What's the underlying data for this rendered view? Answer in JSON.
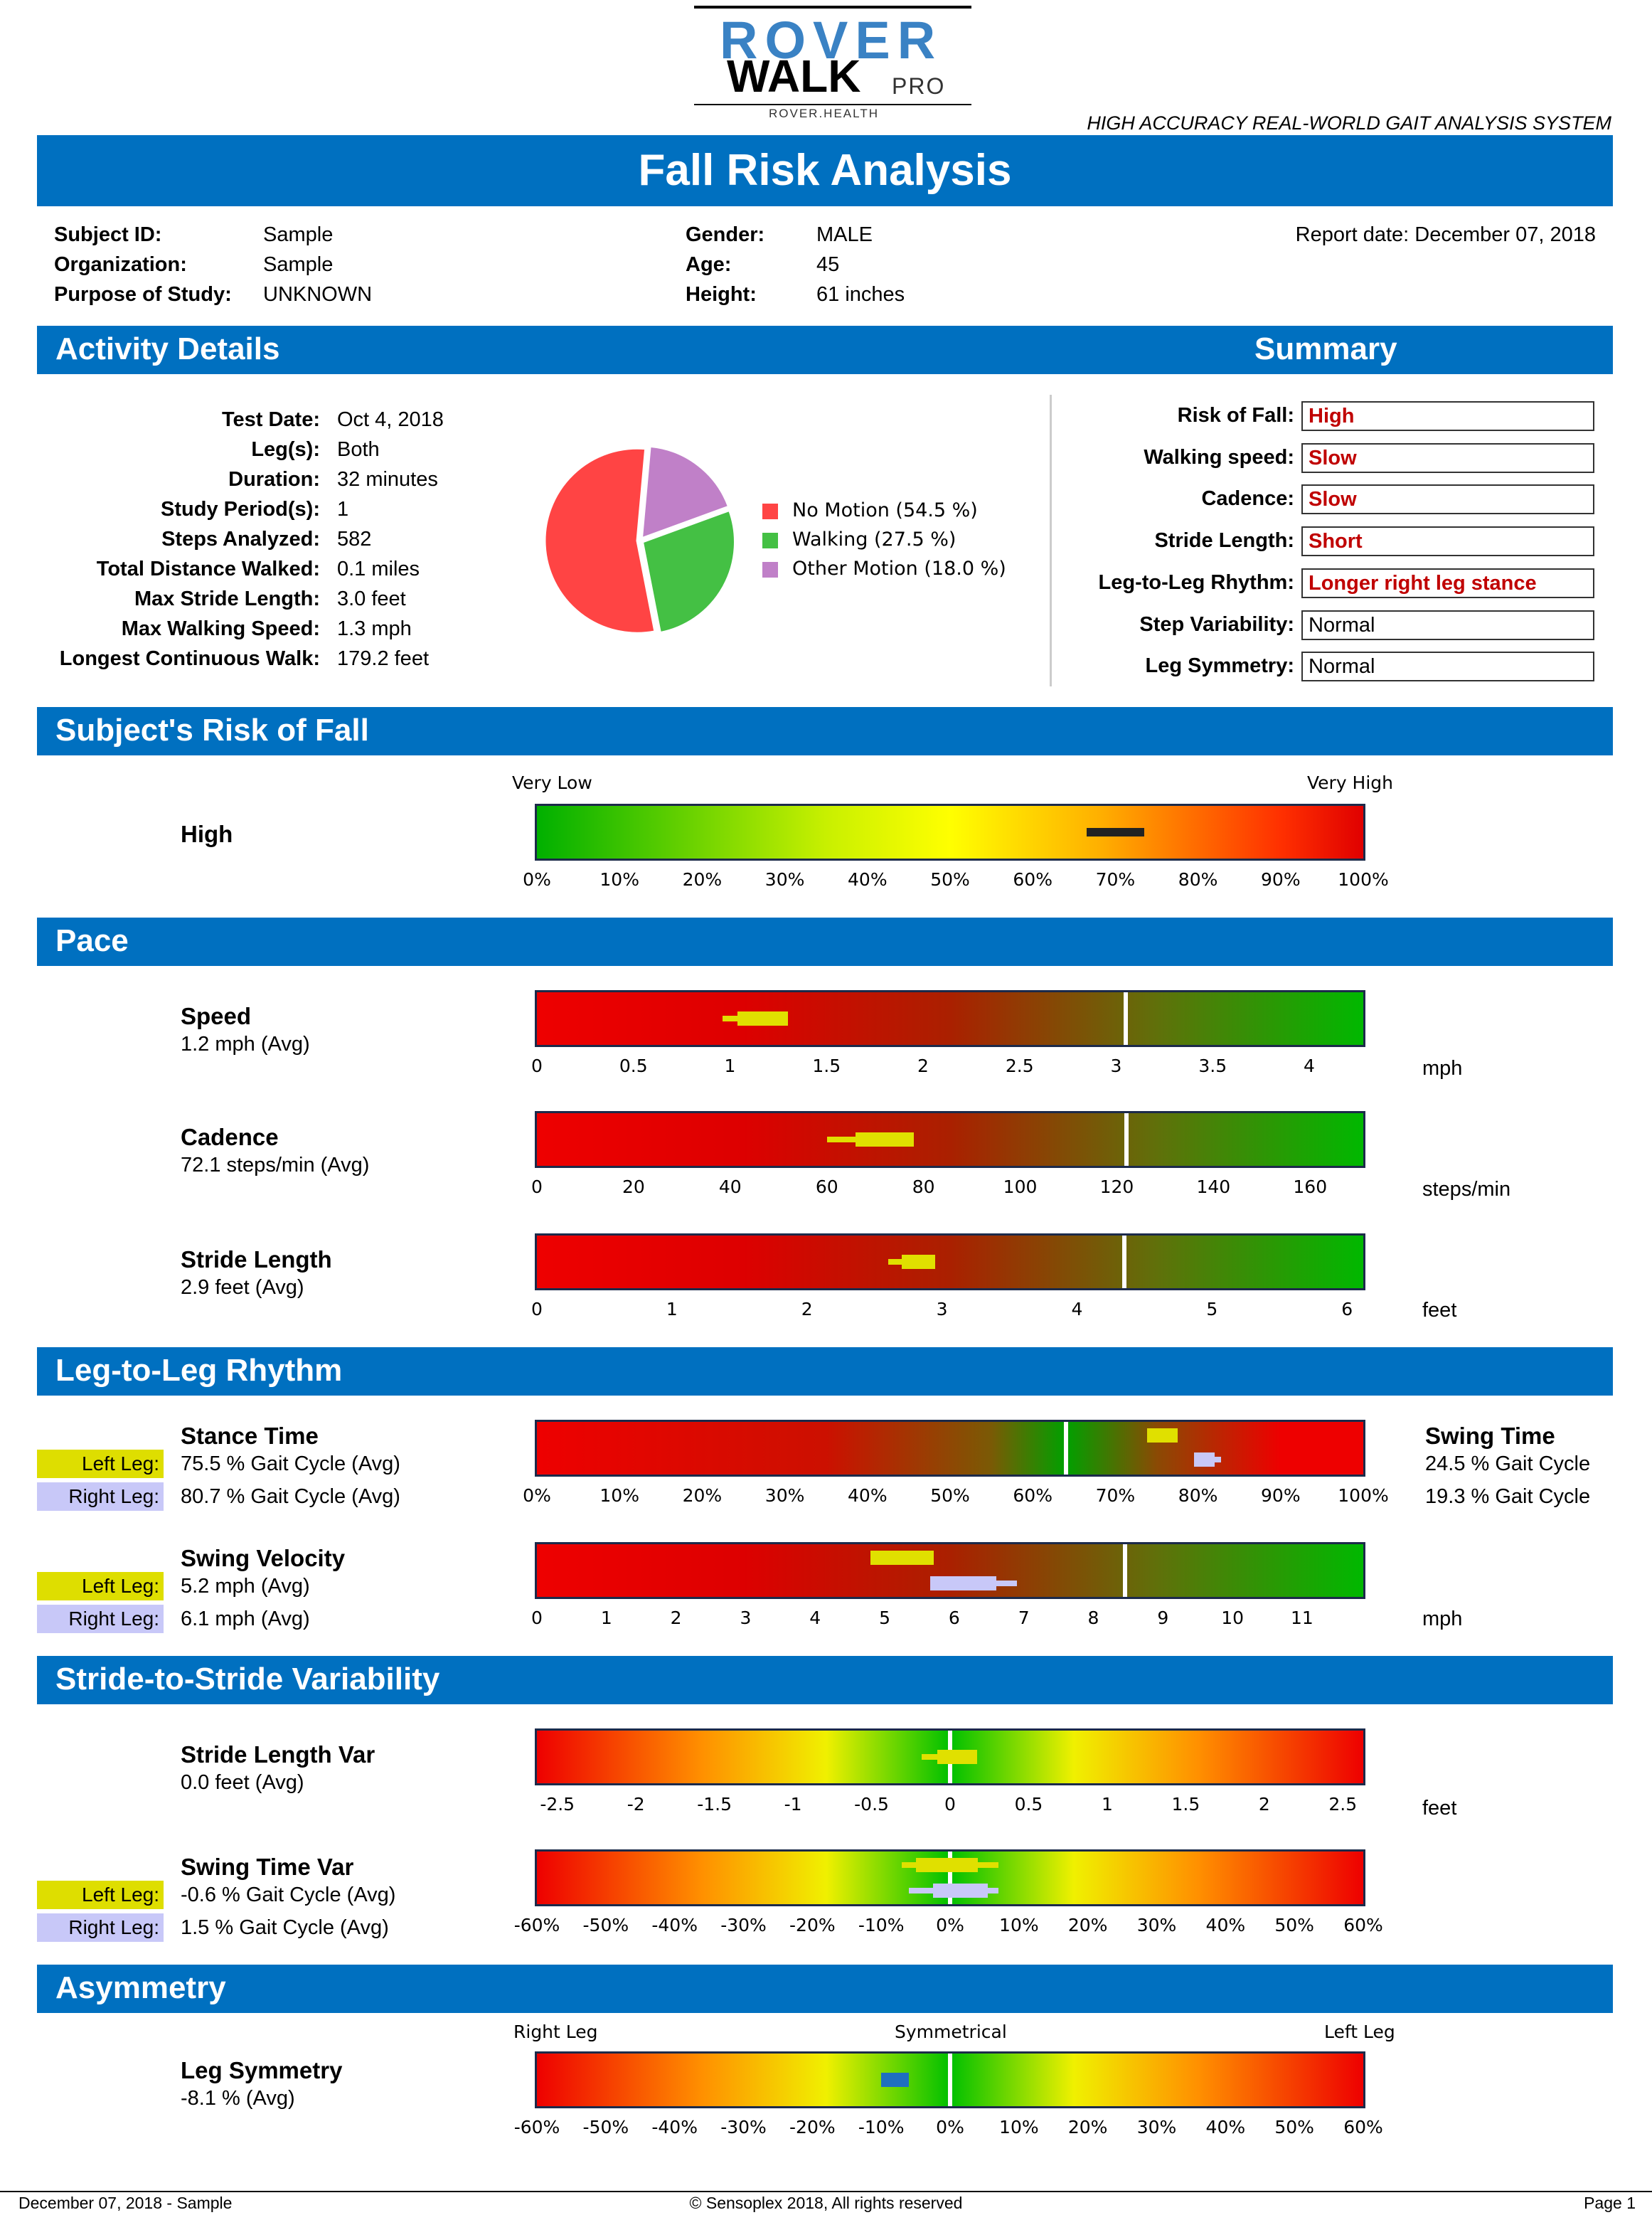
{
  "logo": {
    "rover": "ROVER",
    "walk": "WALK",
    "pro": "PRO",
    "health": "ROVER.HEALTH"
  },
  "tagline": "HIGH ACCURACY REAL-WORLD GAIT ANALYSIS SYSTEM",
  "page_title": "Fall Risk Analysis",
  "subject": {
    "subject_id_label": "Subject ID:",
    "subject_id": "Sample",
    "organization_label": "Organization:",
    "organization": "Sample",
    "purpose_label": "Purpose of Study:",
    "purpose": "UNKNOWN",
    "gender_label": "Gender:",
    "gender": "MALE",
    "age_label": "Age:",
    "age": "45",
    "height_label": "Height:",
    "height": "61 inches",
    "report_date": "Report date: December 07, 2018"
  },
  "sections": {
    "activity": "Activity Details",
    "summary": "Summary",
    "risk": "Subject's Risk of Fall",
    "pace": "Pace",
    "rhythm": "Leg-to-Leg Rhythm",
    "variability": "Stride-to-Stride Variability",
    "asymmetry": "Asymmetry"
  },
  "activity": [
    {
      "label": "Test Date:",
      "value": "Oct 4, 2018"
    },
    {
      "label": "Leg(s):",
      "value": "Both"
    },
    {
      "label": "Duration:",
      "value": "32 minutes"
    },
    {
      "label": "Study Period(s):",
      "value": "1"
    },
    {
      "label": "Steps Analyzed:",
      "value": "582"
    },
    {
      "label": "Total Distance Walked:",
      "value": "0.1 miles"
    },
    {
      "label": "Max Stride Length:",
      "value": "3.0 feet"
    },
    {
      "label": "Max Walking Speed:",
      "value": "1.3 mph"
    },
    {
      "label": "Longest Continuous Walk:",
      "value": "179.2 feet"
    }
  ],
  "pie_chart": {
    "type": "pie",
    "slices": [
      {
        "label": "No Motion (54.5 %)",
        "value": 54.5,
        "color": "#ff4444"
      },
      {
        "label": "Walking (27.5 %)",
        "value": 27.5,
        "color": "#44c044"
      },
      {
        "label": "Other Motion (18.0 %)",
        "value": 18.0,
        "color": "#c080c8"
      }
    ]
  },
  "summary": [
    {
      "label": "Risk of Fall:",
      "value": "High",
      "highlight": true
    },
    {
      "label": "Walking speed:",
      "value": "Slow",
      "highlight": true
    },
    {
      "label": "Cadence:",
      "value": "Slow",
      "highlight": true
    },
    {
      "label": "Stride Length:",
      "value": "Short",
      "highlight": true
    },
    {
      "label": "Leg-to-Leg Rhythm:",
      "value": "Longer right leg stance",
      "highlight": true
    },
    {
      "label": "Step Variability:",
      "value": "Normal",
      "highlight": false
    },
    {
      "label": "Leg Symmetry:",
      "value": "Normal",
      "highlight": false
    }
  ],
  "risk": {
    "level": "High",
    "low_label": "Very Low",
    "high_label": "Very High",
    "marker": [
      0.665,
      0.735
    ]
  },
  "legs": {
    "left": "Left Leg:",
    "right": "Right Leg:"
  },
  "metrics": {
    "speed": {
      "title": "Speed",
      "value": "1.2 mph (Avg)",
      "unit": "mph"
    },
    "cadence": {
      "title": "Cadence",
      "value": "72.1 steps/min (Avg)",
      "unit": "steps/min"
    },
    "stride": {
      "title": "Stride Length",
      "value": "2.9 feet (Avg)",
      "unit": "feet"
    },
    "stance": {
      "title": "Stance Time",
      "left": "75.5 % Gait Cycle (Avg)",
      "right": "80.7 % Gait Cycle (Avg)"
    },
    "swing": {
      "title": "Swing Time",
      "left": "24.5 % Gait Cycle",
      "right": "19.3 % Gait Cycle"
    },
    "swingvel": {
      "title": "Swing Velocity",
      "left": "5.2 mph (Avg)",
      "right": "6.1 mph (Avg)",
      "unit": "mph"
    },
    "stridevar": {
      "title": "Stride Length Var",
      "value": "0.0 feet (Avg)",
      "unit": "feet"
    },
    "swingvar": {
      "title": "Swing Time Var",
      "left": "-0.6 % Gait Cycle (Avg)",
      "right": "1.5 % Gait Cycle (Avg)"
    },
    "symmetry": {
      "title": "Leg Symmetry",
      "value": "-8.1 % (Avg)",
      "left_label": "Right Leg",
      "mid_label": "Symmetrical",
      "right_label": "Left Leg"
    }
  },
  "chart_data": [
    {
      "type": "range",
      "name": "risk",
      "range": [
        0,
        100
      ],
      "ticks": [
        "0%",
        "10%",
        "20%",
        "30%",
        "40%",
        "50%",
        "60%",
        "70%",
        "80%",
        "90%",
        "100%"
      ],
      "marker": [
        66.5,
        73.5
      ]
    },
    {
      "type": "range",
      "name": "speed",
      "range": [
        0,
        4.28
      ],
      "ticks": [
        "0",
        "0.5",
        "1",
        "1.5",
        "2",
        "2.5",
        "3",
        "3.5",
        "4"
      ],
      "tick_values": [
        0,
        0.5,
        1,
        1.5,
        2,
        2.5,
        3,
        3.5,
        4
      ],
      "threshold": 3.05,
      "left_whisker": [
        0.96,
        1.04
      ],
      "left_box": [
        1.04,
        1.3
      ]
    },
    {
      "type": "range",
      "name": "cadence",
      "range": [
        0,
        171
      ],
      "ticks": [
        "0",
        "20",
        "40",
        "60",
        "80",
        "100",
        "120",
        "140",
        "160"
      ],
      "tick_values": [
        0,
        20,
        40,
        60,
        80,
        100,
        120,
        140,
        160
      ],
      "threshold": 122,
      "left_whisker": [
        60,
        66
      ],
      "left_box": [
        66,
        78
      ]
    },
    {
      "type": "range",
      "name": "stride",
      "range": [
        0,
        6.12
      ],
      "ticks": [
        "0",
        "1",
        "2",
        "3",
        "4",
        "5",
        "6"
      ],
      "tick_values": [
        0,
        1,
        2,
        3,
        4,
        5,
        6
      ],
      "threshold": 4.35,
      "left_whisker": [
        2.6,
        2.7
      ],
      "left_box": [
        2.7,
        2.95
      ]
    },
    {
      "type": "range",
      "name": "stance",
      "range": [
        0,
        100
      ],
      "ticks": [
        "0%",
        "10%",
        "20%",
        "30%",
        "40%",
        "50%",
        "60%",
        "70%",
        "80%",
        "90%",
        "100%"
      ],
      "tick_values": [
        0,
        10,
        20,
        30,
        40,
        50,
        60,
        70,
        80,
        90,
        100
      ],
      "threshold": 64,
      "left_box": [
        73.8,
        77.5
      ],
      "right_box": [
        79.5,
        82
      ],
      "right_whisker": [
        82,
        82.8
      ]
    },
    {
      "type": "range",
      "name": "swingvel",
      "range": [
        0,
        11.88
      ],
      "ticks": [
        "0",
        "1",
        "2",
        "3",
        "4",
        "5",
        "6",
        "7",
        "8",
        "9",
        "10",
        "11"
      ],
      "tick_values": [
        0,
        1,
        2,
        3,
        4,
        5,
        6,
        7,
        8,
        9,
        10,
        11
      ],
      "threshold": 8.45,
      "left_box": [
        4.8,
        5.7
      ],
      "right_box": [
        5.65,
        6.6
      ],
      "right_whisker": [
        6.6,
        6.9
      ]
    },
    {
      "type": "range",
      "name": "stridevar",
      "range": [
        -2.63,
        2.63
      ],
      "ticks": [
        "-2.5",
        "-2",
        "-1.5",
        "-1",
        "-0.5",
        "0",
        "0.5",
        "1",
        "1.5",
        "2",
        "2.5"
      ],
      "tick_values": [
        -2.5,
        -2,
        -1.5,
        -1,
        -0.5,
        0,
        0.5,
        1,
        1.5,
        2,
        2.5
      ],
      "threshold": 0,
      "left_whisker": [
        -0.18,
        -0.08
      ],
      "left_box": [
        -0.08,
        0.17
      ]
    },
    {
      "type": "range",
      "name": "swingvar",
      "range": [
        -60,
        60
      ],
      "ticks": [
        "-60%",
        "-50%",
        "-40%",
        "-30%",
        "-20%",
        "-10%",
        "0%",
        "10%",
        "20%",
        "30%",
        "40%",
        "50%",
        "60%"
      ],
      "tick_values": [
        -60,
        -50,
        -40,
        -30,
        -20,
        -10,
        0,
        10,
        20,
        30,
        40,
        50,
        60
      ],
      "threshold": 0,
      "left_whisker": [
        -7,
        -5
      ],
      "left_box": [
        -5,
        4
      ],
      "left_whisker2": [
        4,
        7
      ],
      "right_whisker": [
        -6,
        -2.5
      ],
      "right_box": [
        -2.5,
        5.5
      ],
      "right_whisker2": [
        5.5,
        7
      ]
    },
    {
      "type": "range",
      "name": "symmetry",
      "range": [
        -60,
        60
      ],
      "ticks": [
        "-60%",
        "-50%",
        "-40%",
        "-30%",
        "-20%",
        "-10%",
        "0%",
        "10%",
        "20%",
        "30%",
        "40%",
        "50%",
        "60%"
      ],
      "tick_values": [
        -60,
        -50,
        -40,
        -30,
        -20,
        -10,
        0,
        10,
        20,
        30,
        40,
        50,
        60
      ],
      "threshold": 0,
      "marker": [
        -10,
        -6
      ]
    }
  ],
  "footer": {
    "left": "December 07, 2018 - Sample",
    "center": "© Sensoplex 2018, All rights reserved",
    "right": "Page 1"
  },
  "colors": {
    "band": "#0070c0",
    "left_leg": "#dede00",
    "right_leg": "#c8c8f8",
    "alert": "#c00000",
    "left_marker": "#e0e000",
    "right_marker": "#c8c8f8",
    "symmetry_marker": "#1f6fbf"
  }
}
